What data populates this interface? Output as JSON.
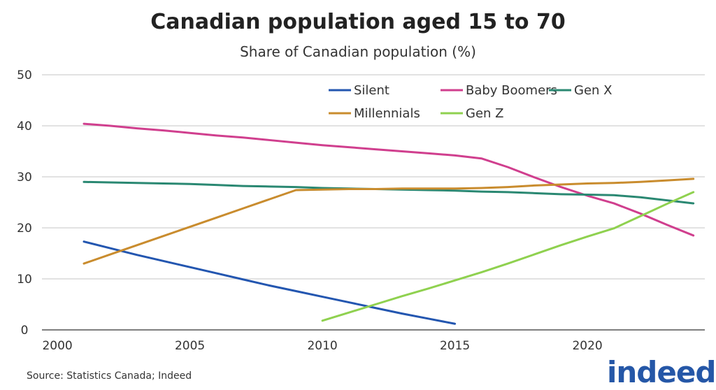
{
  "chart_data": {
    "type": "line",
    "title": "Canadian population aged 15 to 70",
    "subtitle": "Share of Canadian population (%)",
    "xlabel": "",
    "ylabel": "",
    "xlim": [
      2000,
      2024
    ],
    "ylim": [
      0,
      50
    ],
    "x_ticks": [
      "2000",
      "2005",
      "2010",
      "2015",
      "2020"
    ],
    "y_ticks": [
      "0",
      "10",
      "20",
      "30",
      "40",
      "50"
    ],
    "grid": "horizontal",
    "legend": "top-right",
    "series": [
      {
        "name": "Silent",
        "color": "#2356b0",
        "x": [
          2001,
          2002,
          2003,
          2004,
          2005,
          2006,
          2007,
          2008,
          2009,
          2010,
          2011,
          2012,
          2013,
          2014,
          2015
        ],
        "values": [
          17.3,
          16.0,
          14.7,
          13.5,
          12.3,
          11.1,
          9.9,
          8.7,
          7.6,
          6.5,
          5.4,
          4.3,
          3.2,
          2.2,
          1.2
        ]
      },
      {
        "name": "Baby Boomers",
        "color": "#d03f8e",
        "x": [
          2001,
          2002,
          2003,
          2004,
          2005,
          2006,
          2007,
          2008,
          2009,
          2010,
          2011,
          2012,
          2013,
          2014,
          2015,
          2016,
          2017,
          2018,
          2019,
          2020,
          2021,
          2022,
          2023,
          2024
        ],
        "values": [
          40.4,
          40.0,
          39.5,
          39.1,
          38.6,
          38.1,
          37.7,
          37.2,
          36.7,
          36.2,
          35.8,
          35.4,
          35.0,
          34.6,
          34.2,
          33.6,
          31.9,
          29.9,
          28.0,
          26.3,
          24.8,
          22.8,
          20.6,
          18.5
        ]
      },
      {
        "name": "Gen X",
        "color": "#2a8872",
        "x": [
          2001,
          2002,
          2003,
          2004,
          2005,
          2006,
          2007,
          2008,
          2009,
          2010,
          2011,
          2012,
          2013,
          2014,
          2015,
          2016,
          2017,
          2018,
          2019,
          2020,
          2021,
          2022,
          2023,
          2024
        ],
        "values": [
          29.0,
          28.9,
          28.8,
          28.7,
          28.6,
          28.4,
          28.2,
          28.1,
          28.0,
          27.8,
          27.7,
          27.6,
          27.5,
          27.4,
          27.3,
          27.1,
          27.0,
          26.8,
          26.6,
          26.5,
          26.4,
          26.0,
          25.4,
          24.8
        ]
      },
      {
        "name": "Millennials",
        "color": "#c98c2e",
        "x": [
          2001,
          2002,
          2003,
          2004,
          2005,
          2006,
          2007,
          2008,
          2009,
          2010,
          2011,
          2012,
          2013,
          2014,
          2015,
          2016,
          2017,
          2018,
          2019,
          2020,
          2021,
          2022,
          2023,
          2024
        ],
        "values": [
          13.0,
          14.8,
          16.6,
          18.4,
          20.2,
          22.0,
          23.8,
          25.6,
          27.4,
          27.5,
          27.6,
          27.6,
          27.7,
          27.7,
          27.7,
          27.8,
          28.0,
          28.3,
          28.5,
          28.7,
          28.8,
          29.0,
          29.3,
          29.6
        ]
      },
      {
        "name": "Gen Z",
        "color": "#8fd14f",
        "x": [
          2010,
          2011,
          2012,
          2013,
          2014,
          2015,
          2016,
          2017,
          2018,
          2019,
          2020,
          2021,
          2022,
          2023,
          2024
        ],
        "values": [
          1.8,
          3.4,
          5.0,
          6.6,
          8.1,
          9.7,
          11.3,
          13.0,
          14.8,
          16.6,
          18.3,
          19.9,
          22.3,
          24.7,
          27.0
        ]
      }
    ]
  },
  "source": "Source: Statistics Canada; Indeed",
  "logo_text": "indeed"
}
